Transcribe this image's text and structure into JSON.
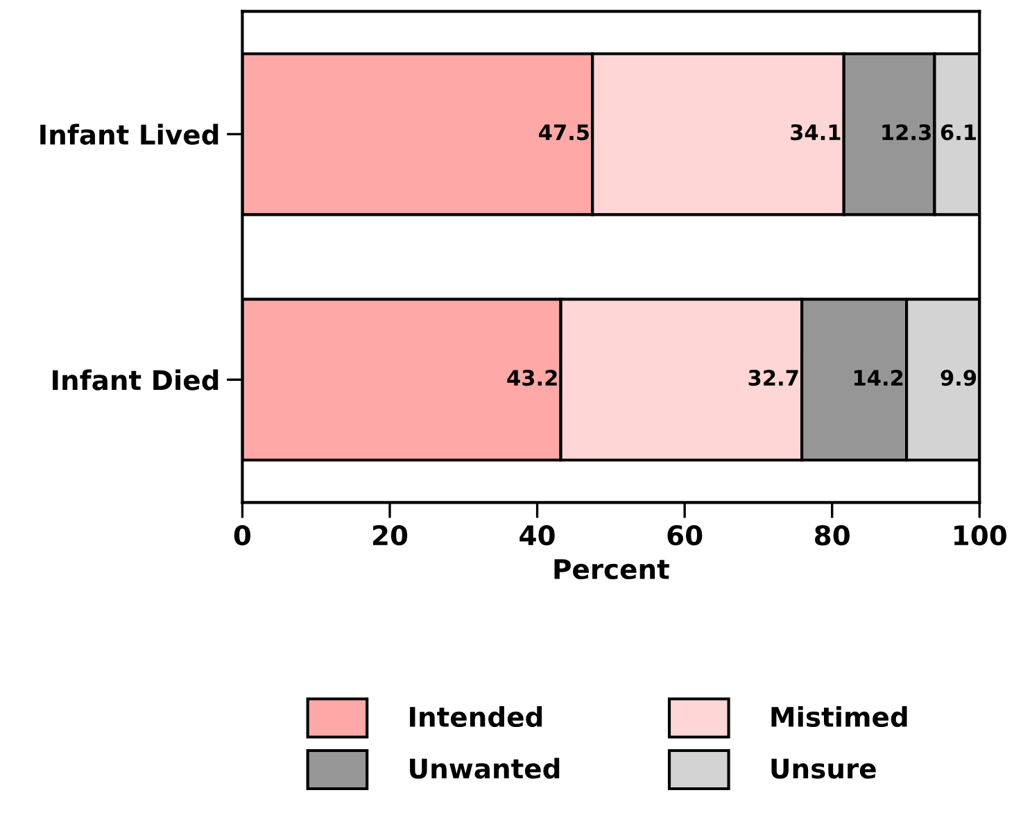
{
  "chart_data": {
    "type": "bar",
    "orientation": "horizontal",
    "stacked": true,
    "xlabel": "Percent",
    "categories": [
      "Infant Lived",
      "Infant Died"
    ],
    "series": [
      {
        "name": "Intended",
        "color": "#ffa8a8",
        "values": [
          47.5,
          43.2
        ]
      },
      {
        "name": "Mistimed",
        "color": "#ffd6d6",
        "values": [
          34.1,
          32.7
        ]
      },
      {
        "name": "Unwanted",
        "color": "#969696",
        "values": [
          12.3,
          14.2
        ]
      },
      {
        "name": "Unsure",
        "color": "#d3d3d3",
        "values": [
          6.1,
          9.9
        ]
      }
    ],
    "xlim": [
      0,
      100
    ],
    "xticks": [
      0,
      20,
      40,
      60,
      80,
      100
    ],
    "data_labels": true,
    "grid": false,
    "legend": "bottom"
  }
}
